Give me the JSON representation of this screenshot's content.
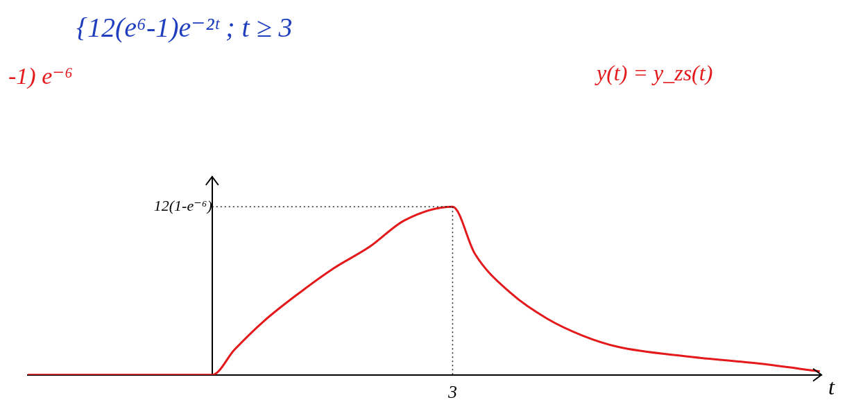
{
  "chart_data": {
    "type": "line",
    "annotations": [
      {
        "text": "{12(e⁶-1)e⁻²ᵗ ; t ≥ 3",
        "color": "#1f3fbf"
      },
      {
        "text": "-1) e⁻⁶",
        "color": "#e3191c"
      },
      {
        "text": "y(t) = y_zs(t)",
        "color": "#e3191c"
      }
    ],
    "x_label": "t",
    "x": [
      -2.3,
      -1,
      0,
      0.28,
      0.64,
      1.08,
      1.52,
      1.96,
      2.4,
      3,
      3.28,
      3.73,
      4.18,
      4.62,
      5.06,
      5.95,
      6.83,
      7.58
    ],
    "values": [
      0,
      0,
      0,
      1.8,
      3.8,
      5.8,
      7.6,
      9.1,
      11.0,
      11.97,
      8.6,
      5.8,
      4.0,
      2.8,
      2.0,
      1.3,
      0.8,
      0.25
    ],
    "color": "#e3191c",
    "xlim": [
      -2.3,
      7.6
    ],
    "ylim": [
      0,
      14.1
    ],
    "xticks": [
      3
    ],
    "yticks": [
      {
        "value": 11.97,
        "label": "12(1-e⁻⁶)"
      }
    ],
    "grid": false
  }
}
